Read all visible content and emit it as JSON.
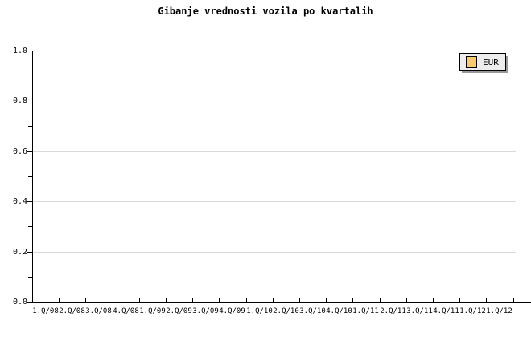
{
  "chart_data": {
    "type": "line",
    "title": "Gibanje vrednosti vozila po kvartalih",
    "categories": [
      "1.Q/08",
      "2.Q/08",
      "3.Q/08",
      "4.Q/08",
      "1.Q/09",
      "2.Q/09",
      "3.Q/09",
      "4.Q/09",
      "1.Q/10",
      "2.Q/10",
      "3.Q/10",
      "4.Q/10",
      "1.Q/11",
      "2.Q/11",
      "3.Q/11",
      "4.Q/11",
      "1.Q/12",
      "1.Q/12"
    ],
    "series": [
      {
        "name": "EUR",
        "color": "#FACB6E",
        "values": []
      }
    ],
    "xlabel": "",
    "ylabel": "",
    "ylim": [
      0,
      1
    ],
    "yticks": [
      {
        "label": "1.0",
        "value": 1.0
      },
      {
        "label": "0.8",
        "value": 0.8
      },
      {
        "label": "0.6",
        "value": 0.6
      },
      {
        "label": "0.4",
        "value": 0.4
      },
      {
        "label": "0.2",
        "value": 0.2
      },
      {
        "label": "0.0",
        "value": 0.0
      }
    ],
    "yticks_minor": [
      0.9,
      0.7,
      0.5,
      0.3,
      0.1
    ],
    "grid": "horizontal-major",
    "legend": {
      "position": "top-right",
      "entries": [
        {
          "label": "EUR",
          "color": "#FACB6E"
        }
      ]
    },
    "colors": {
      "grid": "#d9d9d9",
      "axis": "#000000",
      "legend_fill": "#ededed",
      "legend_shadow": "#999999",
      "background": "#ffffff"
    }
  }
}
